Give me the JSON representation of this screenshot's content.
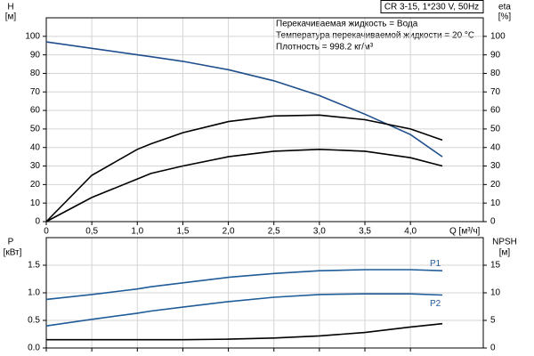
{
  "chart_data": [
    {
      "type": "line",
      "title": "CR 3-15, 1*230 V, 50Hz",
      "annotations": [
        "Перекачиваемая жидкость = Вода",
        "Температура перекачиваемой жидкости = 20 °C",
        "Плотность = 998.2 кг/м³"
      ],
      "ylabel": "H",
      "yunit": "[м]",
      "y2label": "eta",
      "y2unit": "[%]",
      "xlabel": "Q [м³/ч]",
      "x": [
        0,
        0.5,
        1.0,
        1.15,
        1.5,
        2.0,
        2.5,
        3.0,
        3.5,
        4.0,
        4.35
      ],
      "xlim": [
        0,
        4.8
      ],
      "xticks": [
        0,
        {
          "value": 0.5,
          "label": "0,5"
        },
        {
          "value": 1.0,
          "label": "1,0"
        },
        {
          "value": 1.5,
          "label": "1,5"
        },
        {
          "value": 2.0,
          "label": "2,0"
        },
        {
          "value": 2.5,
          "label": "2,5"
        },
        {
          "value": 3.0,
          "label": "3,0"
        },
        {
          "value": 3.5,
          "label": "3,5"
        },
        {
          "value": 4.0,
          "label": "4,0"
        }
      ],
      "ylim": [
        0,
        110
      ],
      "yticks": [
        0,
        10,
        20,
        30,
        40,
        50,
        60,
        70,
        80,
        90,
        100
      ],
      "y2lim": [
        0,
        110
      ],
      "y2ticks": [
        0,
        10,
        20,
        30,
        40,
        50,
        60,
        70,
        80,
        90,
        100
      ],
      "grid": true,
      "series": [
        {
          "color": "#1f4e8c",
          "values": [
            97,
            93.5,
            90,
            89,
            86.5,
            82,
            76,
            68,
            58,
            47,
            35
          ]
        },
        {
          "color": "#000000",
          "axis": "y2",
          "values": [
            0,
            25,
            39,
            42,
            48,
            54,
            57,
            57.5,
            55,
            50,
            44
          ]
        },
        {
          "color": "#000000",
          "axis": "y2",
          "values": [
            0,
            13,
            23,
            26,
            30,
            35,
            38,
            39,
            38,
            34.5,
            30
          ]
        }
      ]
    },
    {
      "type": "line",
      "ylabel": "P",
      "yunit": "[кВт]",
      "y2label": "NPSH",
      "y2unit": "[м]",
      "x": [
        0,
        0.5,
        1.0,
        1.15,
        1.5,
        2.0,
        2.5,
        3.0,
        3.5,
        4.0,
        4.35
      ],
      "xlim": [
        0,
        4.8
      ],
      "ylim": [
        0,
        2.0
      ],
      "yticks": [
        {
          "value": 0,
          "label": "0.0"
        },
        {
          "value": 0.5,
          "label": "0.5"
        },
        {
          "value": 1.0,
          "label": "1.0"
        },
        {
          "value": 1.5,
          "label": "1.5"
        }
      ],
      "y2lim": [
        0,
        20
      ],
      "y2ticks": [
        0,
        5,
        10,
        15
      ],
      "grid": true,
      "series": [
        {
          "name": "P1",
          "color": "#1f5c99",
          "values": [
            0.88,
            0.97,
            1.07,
            1.11,
            1.18,
            1.28,
            1.35,
            1.4,
            1.42,
            1.42,
            1.4
          ]
        },
        {
          "name": "P2",
          "color": "#1f5c99",
          "values": [
            0.4,
            0.52,
            0.63,
            0.67,
            0.74,
            0.84,
            0.92,
            0.97,
            0.98,
            0.98,
            0.96
          ]
        },
        {
          "color": "#000000",
          "axis": "y2",
          "values": [
            1.5,
            1.5,
            1.5,
            1.5,
            1.5,
            1.6,
            1.8,
            2.2,
            2.8,
            3.8,
            4.4
          ]
        }
      ]
    }
  ]
}
